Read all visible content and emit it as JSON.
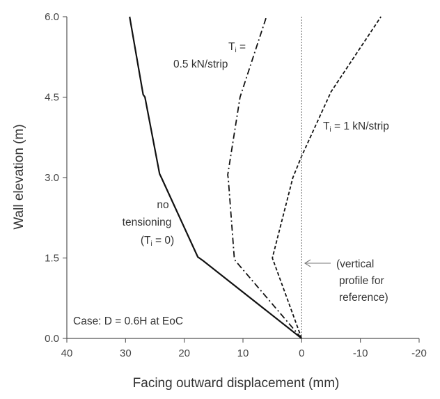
{
  "chart_data": {
    "type": "line",
    "xlabel": "Facing outward displacement (mm)",
    "ylabel": "Wall elevation (m)",
    "xlim": [
      40,
      -20
    ],
    "ylim": [
      0,
      6
    ],
    "x_reversed": true,
    "grid": false,
    "x_ticks": [
      "40",
      "30",
      "20",
      "10",
      "0",
      "-10",
      "-20"
    ],
    "x_tick_values": [
      40,
      30,
      20,
      10,
      0,
      -10,
      -20
    ],
    "y_ticks": [
      "0.0",
      "1.5",
      "3.0",
      "4.5",
      "6.0"
    ],
    "y_tick_values": [
      0,
      1.5,
      3.0,
      4.5,
      6.0
    ],
    "series": [
      {
        "line_style": "solid",
        "color": "#111111",
        "points": [
          [
            0,
            0
          ],
          [
            16.8,
            1.45
          ],
          [
            17.7,
            1.52
          ],
          [
            23.9,
            3.0
          ],
          [
            24.2,
            3.07
          ],
          [
            26.7,
            4.5
          ],
          [
            27,
            4.55
          ],
          [
            29.3,
            6.0
          ]
        ]
      },
      {
        "line_style": "dashdot",
        "color": "#111111",
        "points": [
          [
            0,
            0
          ],
          [
            11.3,
            1.45
          ],
          [
            11.5,
            1.52
          ],
          [
            12.5,
            2.98
          ],
          [
            12.6,
            3.05
          ],
          [
            10.5,
            4.5
          ],
          [
            6,
            6.0
          ]
        ]
      },
      {
        "line_style": "dashed",
        "color": "#111111",
        "points": [
          [
            0,
            0
          ],
          [
            5.0,
            1.5
          ],
          [
            1.5,
            3.0
          ],
          [
            0,
            3.4
          ],
          [
            -5.0,
            4.6
          ],
          [
            -13.5,
            6.0
          ]
        ]
      },
      {
        "line_style": "dotted",
        "color": "#666666",
        "points": [
          [
            0,
            0
          ],
          [
            0,
            6.0
          ]
        ]
      }
    ],
    "annotations": {
      "no_tension": {
        "line1": "no",
        "line2": "tensioning",
        "line3_pre": "(T",
        "line3_sub": "i",
        "line3_post": " = 0)"
      },
      "half": {
        "line1_pre": "T",
        "line1_sub": "i",
        "line1_post": " =",
        "line2": "0.5 kN/strip"
      },
      "one": {
        "pre": "T",
        "sub": "i",
        "post": " = 1 kN/strip"
      },
      "vertical": {
        "line1": "(vertical",
        "line2": "profile for",
        "line3": "reference)"
      },
      "case": "Case: D = 0.6H at EoC"
    }
  }
}
